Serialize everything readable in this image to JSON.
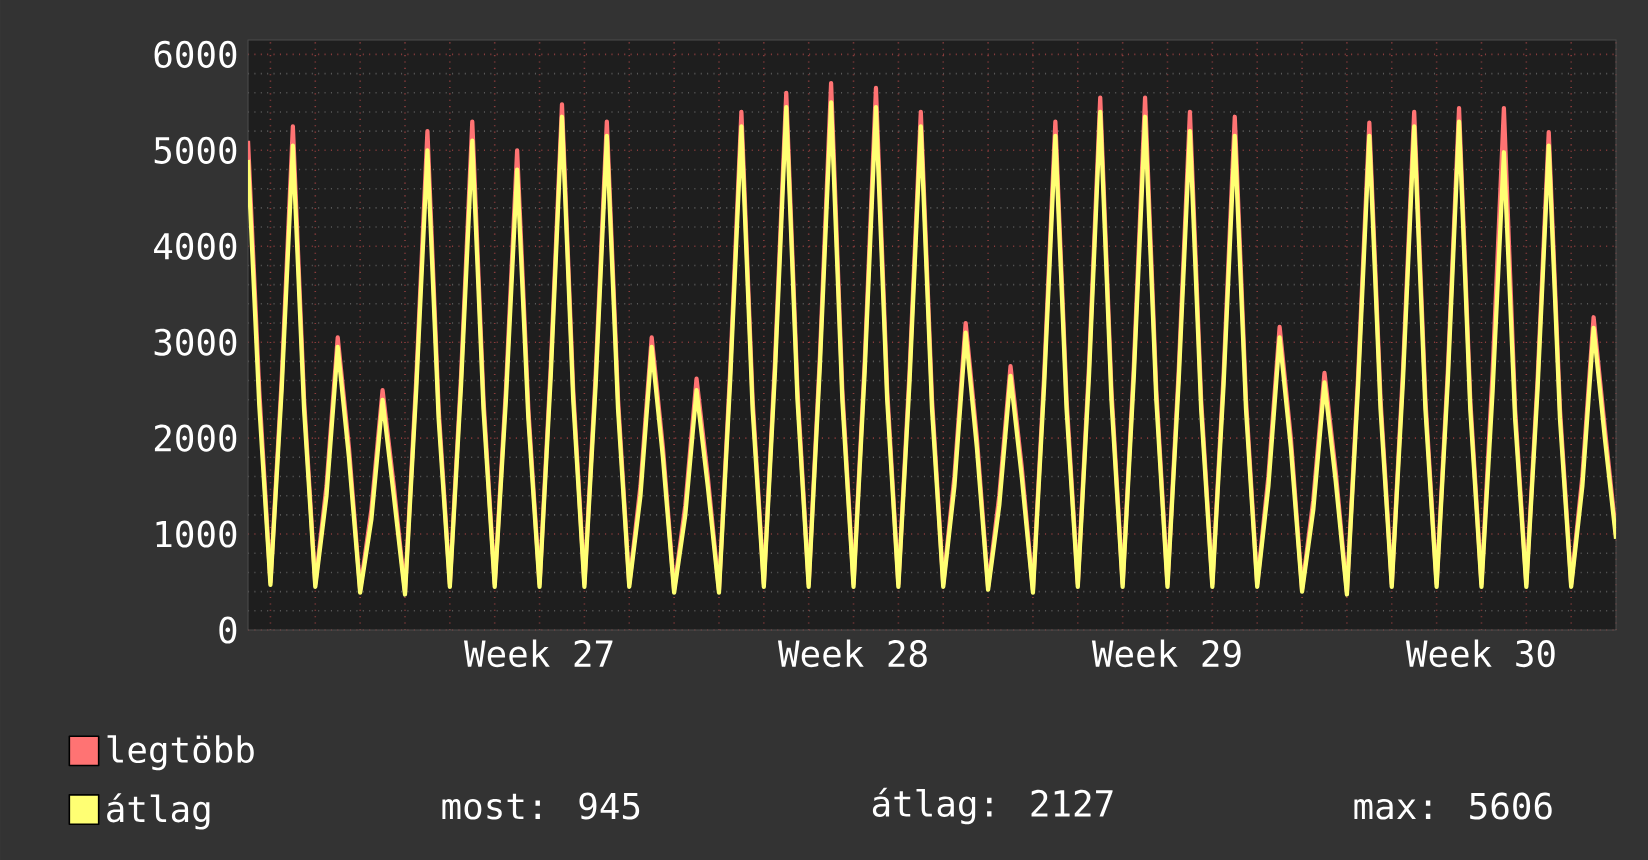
{
  "chart_data": {
    "type": "line",
    "categories": [
      null,
      null,
      null,
      null,
      null,
      null,
      null,
      null,
      null,
      null,
      null,
      null,
      null,
      null,
      null,
      null,
      null,
      null,
      null,
      null,
      null,
      null,
      null,
      null,
      null,
      null,
      "Week 27",
      null,
      null,
      null,
      null,
      null,
      null,
      null,
      null,
      null,
      null,
      null,
      null,
      null,
      null,
      null,
      null,
      null,
      null,
      null,
      null,
      null,
      null,
      null,
      null,
      null,
      null,
      null,
      "Week 28",
      null,
      null,
      null,
      null,
      null,
      null,
      null,
      null,
      null,
      null,
      null,
      null,
      null,
      null,
      null,
      null,
      null,
      null,
      null,
      null,
      null,
      null,
      null,
      null,
      null,
      null,
      null,
      "Week 29",
      null,
      null,
      null,
      null,
      null,
      null,
      null,
      null,
      null,
      null,
      null,
      null,
      null,
      null,
      null,
      null,
      null,
      null,
      null,
      null,
      null,
      null,
      null,
      null,
      null,
      null,
      null,
      "Week 30",
      null,
      null,
      null,
      null,
      null,
      null,
      null,
      null,
      null,
      null,
      null,
      null
    ],
    "series": [
      {
        "name": "legtöbb",
        "color": "#ff7373",
        "values": [
          5100,
          2500,
          500,
          2600,
          5250,
          2400,
          480,
          1500,
          3050,
          1900,
          420,
          1250,
          2500,
          1500,
          400,
          2600,
          5200,
          2300,
          480,
          2650,
          5300,
          2400,
          480,
          2500,
          5000,
          2300,
          480,
          2750,
          5480,
          2500,
          480,
          2650,
          5300,
          2400,
          480,
          1500,
          3050,
          1900,
          420,
          1300,
          2620,
          1600,
          420,
          2700,
          5400,
          2400,
          480,
          2800,
          5600,
          2500,
          480,
          2850,
          5700,
          2500,
          480,
          2800,
          5650,
          2500,
          480,
          2700,
          5400,
          2400,
          480,
          1600,
          3200,
          2000,
          450,
          1400,
          2750,
          1700,
          420,
          2650,
          5300,
          2400,
          480,
          2750,
          5550,
          2500,
          480,
          2750,
          5550,
          2500,
          480,
          2700,
          5400,
          2400,
          480,
          2650,
          5350,
          2400,
          480,
          1600,
          3160,
          2000,
          430,
          1350,
          2680,
          1650,
          400,
          2650,
          5290,
          2400,
          480,
          2700,
          5400,
          2400,
          480,
          2700,
          5440,
          2400,
          480,
          2700,
          5440,
          2300,
          480,
          2600,
          5190,
          2300,
          480,
          1600,
          3260,
          2100,
          1000
        ]
      },
      {
        "name": "átlag",
        "color": "#ffff73",
        "values": [
          4900,
          2350,
          470,
          2500,
          5050,
          2300,
          450,
          1400,
          2950,
          1800,
          390,
          1150,
          2400,
          1400,
          370,
          2500,
          5000,
          2200,
          450,
          2550,
          5100,
          2300,
          450,
          2400,
          4800,
          2200,
          450,
          2650,
          5350,
          2400,
          450,
          2550,
          5150,
          2300,
          450,
          1400,
          2950,
          1800,
          390,
          1200,
          2500,
          1500,
          390,
          2600,
          5250,
          2300,
          450,
          2700,
          5450,
          2400,
          450,
          2750,
          5500,
          2400,
          450,
          2700,
          5450,
          2400,
          450,
          2600,
          5250,
          2300,
          450,
          1500,
          3100,
          1900,
          420,
          1300,
          2650,
          1600,
          390,
          2550,
          5150,
          2300,
          450,
          2650,
          5400,
          2400,
          450,
          2650,
          5350,
          2400,
          450,
          2600,
          5200,
          2300,
          450,
          2550,
          5150,
          2300,
          450,
          1500,
          3050,
          1900,
          400,
          1250,
          2580,
          1550,
          370,
          2550,
          5150,
          2300,
          450,
          2600,
          5250,
          2300,
          450,
          2600,
          5300,
          2300,
          450,
          2500,
          4980,
          2200,
          450,
          2500,
          5050,
          2200,
          450,
          1500,
          3150,
          2000,
          950
        ]
      }
    ],
    "ylim": [
      0,
      6150
    ],
    "yticks": [
      0,
      1000,
      2000,
      3000,
      4000,
      5000,
      6000
    ],
    "grid": true,
    "legend": "bottom left",
    "marker": "none",
    "line_style": "solid",
    "annotations": [
      "most: 945",
      "átlag: 2127",
      "max: 5606"
    ]
  }
}
